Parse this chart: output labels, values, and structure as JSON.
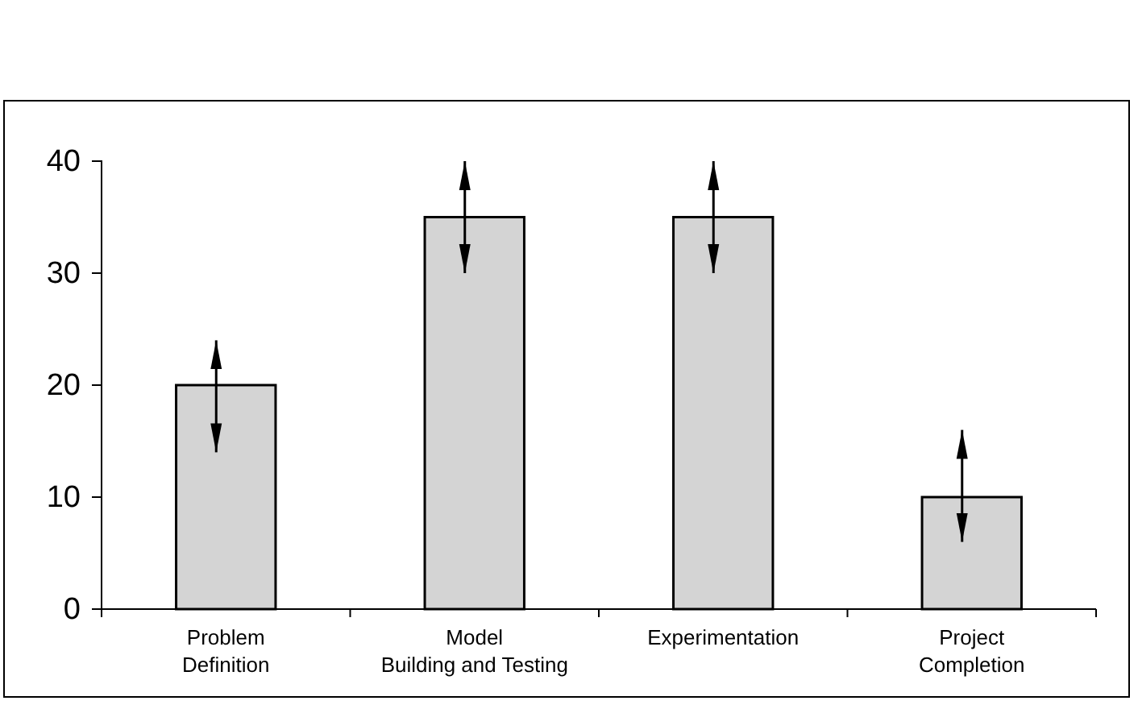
{
  "chart_data": {
    "type": "bar",
    "categories": [
      "Problem Definition",
      "Model Building and Testing",
      "Experimentation",
      "Project Completion"
    ],
    "values": [
      20,
      35,
      35,
      10
    ],
    "errors": [
      [
        14,
        24
      ],
      [
        30,
        40
      ],
      [
        30,
        40
      ],
      [
        6,
        16
      ]
    ],
    "color": "#d4d4d4",
    "ylim": [
      0,
      40
    ],
    "yticks": [
      0,
      10,
      20,
      30,
      40
    ],
    "grid": false
  }
}
